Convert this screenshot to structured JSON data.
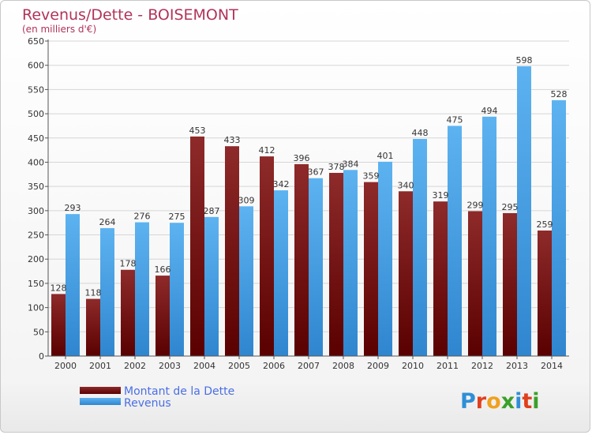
{
  "chart_data": {
    "type": "bar",
    "title": "Revenus/Dette - BOISEMONT",
    "subtitle": "(en milliers d'€)",
    "categories": [
      "2000",
      "2001",
      "2002",
      "2003",
      "2004",
      "2005",
      "2006",
      "2007",
      "2008",
      "2009",
      "2010",
      "2011",
      "2012",
      "2013",
      "2014"
    ],
    "series": [
      {
        "name": "Montant de la Dette",
        "color": "#7a1a1a",
        "values": [
          128,
          118,
          178,
          166,
          453,
          433,
          412,
          396,
          378,
          359,
          340,
          319,
          299,
          295,
          259
        ]
      },
      {
        "name": "Revenus",
        "color": "#4aa3e6",
        "values": [
          293,
          264,
          276,
          275,
          287,
          309,
          342,
          367,
          384,
          401,
          448,
          475,
          494,
          598,
          528
        ]
      }
    ],
    "ylim": [
      0,
      650
    ],
    "yticks": [
      0,
      50,
      100,
      150,
      200,
      250,
      300,
      350,
      400,
      450,
      500,
      550,
      600,
      650
    ],
    "grid": true,
    "legend": "bottom-left"
  },
  "logo": {
    "letters": [
      "P",
      "r",
      "o",
      "x",
      "i",
      "t",
      "i"
    ],
    "colors": [
      "#2f8fd6",
      "#e0401e",
      "#f0a020",
      "#3aa02a",
      "#2f8fd6",
      "#e0401e",
      "#3aa02a"
    ]
  }
}
